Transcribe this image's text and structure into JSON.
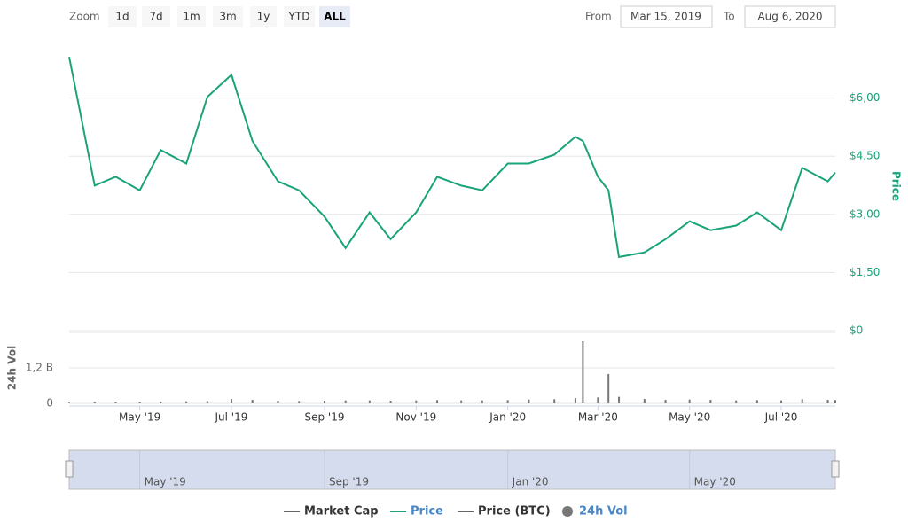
{
  "chart_data": {
    "type": "line",
    "zoom": {
      "label": "Zoom",
      "buttons": [
        "1d",
        "7d",
        "1m",
        "3m",
        "1y",
        "YTD",
        "ALL"
      ],
      "selected": 6
    },
    "range": {
      "from_label": "From",
      "from": "Mar 15, 2019",
      "to_label": "To",
      "to": "Aug 6, 2020"
    },
    "x": [
      "2019-03-15",
      "2019-04-01",
      "2019-04-15",
      "2019-05-01",
      "2019-05-15",
      "2019-06-01",
      "2019-06-15",
      "2019-07-01",
      "2019-07-15",
      "2019-08-01",
      "2019-08-15",
      "2019-09-01",
      "2019-09-15",
      "2019-10-01",
      "2019-10-15",
      "2019-11-01",
      "2019-11-15",
      "2019-12-01",
      "2019-12-15",
      "2020-01-01",
      "2020-01-15",
      "2020-02-01",
      "2020-02-15",
      "2020-02-20",
      "2020-03-01",
      "2020-03-08",
      "2020-03-15",
      "2020-04-01",
      "2020-04-15",
      "2020-05-01",
      "2020-05-15",
      "2020-06-01",
      "2020-06-15",
      "2020-07-01",
      "2020-07-15",
      "2020-08-01",
      "2020-08-06"
    ],
    "xlim": [
      "2019-03-15",
      "2020-08-06"
    ],
    "xticks": [
      {
        "value": "2019-05-01",
        "label": "May '19"
      },
      {
        "value": "2019-07-01",
        "label": "Jul '19"
      },
      {
        "value": "2019-09-01",
        "label": "Sep '19"
      },
      {
        "value": "2019-11-01",
        "label": "Nov '19"
      },
      {
        "value": "2020-01-01",
        "label": "Jan '20"
      },
      {
        "value": "2020-03-01",
        "label": "Mar '20"
      },
      {
        "value": "2020-05-01",
        "label": "May '20"
      },
      {
        "value": "2020-07-01",
        "label": "Jul '20"
      }
    ],
    "ylabel": "Price",
    "ylim": [
      0,
      7.5
    ],
    "yticks": [
      {
        "value": 0,
        "label": "$0"
      },
      {
        "value": 1.5,
        "label": "$1,50"
      },
      {
        "value": 3,
        "label": "$3,00"
      },
      {
        "value": 4.5,
        "label": "$4,50"
      },
      {
        "value": 6,
        "label": "$6,00"
      }
    ],
    "y2label": "24h Vol",
    "y2lim": [
      0,
      2400000000
    ],
    "y2ticks": [
      0,
      {
        "value": 1200000000,
        "label": "1,2 B"
      }
    ],
    "grid": true,
    "series": [
      {
        "name": "Market Cap",
        "color": "#666666",
        "visible": false
      },
      {
        "name": "Price",
        "color": "#1aa37a",
        "visible": true,
        "values": [
          7.06,
          3.74,
          3.97,
          3.62,
          4.66,
          4.31,
          6.03,
          6.6,
          4.89,
          3.85,
          3.62,
          2.94,
          2.13,
          3.05,
          2.36,
          3.05,
          3.97,
          3.74,
          3.62,
          4.31,
          4.31,
          4.54,
          5.0,
          4.89,
          3.97,
          3.62,
          1.9,
          2.02,
          2.36,
          2.82,
          2.59,
          2.71,
          3.05,
          2.59,
          4.2,
          3.85,
          4.08
        ]
      },
      {
        "name": "Price (BTC)",
        "color": "#666666",
        "visible": false
      },
      {
        "name": "24h Vol",
        "color": "#777777",
        "visible": true,
        "axis": "y2",
        "values": [
          20000000,
          30000000,
          40000000,
          50000000,
          60000000,
          70000000,
          80000000,
          150000000,
          120000000,
          90000000,
          80000000,
          90000000,
          100000000,
          100000000,
          90000000,
          100000000,
          110000000,
          100000000,
          100000000,
          110000000,
          130000000,
          140000000,
          180000000,
          2100000000,
          200000000,
          990000000,
          220000000,
          150000000,
          120000000,
          130000000,
          120000000,
          100000000,
          110000000,
          100000000,
          140000000,
          120000000,
          110000000
        ]
      }
    ],
    "navigator": {
      "xticks": [
        {
          "value": "2019-05-01",
          "label": "May '19"
        },
        {
          "value": "2019-09-01",
          "label": "Sep '19"
        },
        {
          "value": "2020-01-01",
          "label": "Jan '20"
        },
        {
          "value": "2020-05-01",
          "label": "May '20"
        }
      ]
    }
  }
}
